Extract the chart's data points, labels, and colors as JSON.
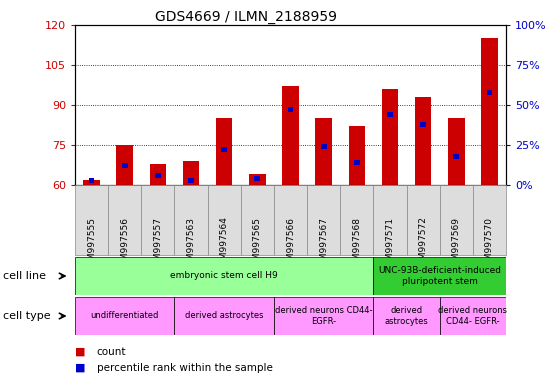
{
  "title": "GDS4669 / ILMN_2188959",
  "samples": [
    "GSM997555",
    "GSM997556",
    "GSM997557",
    "GSM997563",
    "GSM997564",
    "GSM997565",
    "GSM997566",
    "GSM997567",
    "GSM997568",
    "GSM997571",
    "GSM997572",
    "GSM997569",
    "GSM997570"
  ],
  "count_values": [
    62,
    75,
    68,
    69,
    85,
    64,
    97,
    85,
    82,
    96,
    93,
    85,
    115
  ],
  "percentile_values": [
    3,
    12,
    6,
    3,
    22,
    4,
    47,
    24,
    14,
    44,
    38,
    18,
    58
  ],
  "ylim_left": [
    60,
    120
  ],
  "ylim_right": [
    0,
    100
  ],
  "yticks_left": [
    60,
    75,
    90,
    105,
    120
  ],
  "yticks_right": [
    0,
    25,
    50,
    75,
    100
  ],
  "bar_color": "#cc0000",
  "percentile_color": "#0000cc",
  "bar_width": 0.5,
  "cell_line_groups": [
    {
      "label": "embryonic stem cell H9",
      "start": 0,
      "end": 9,
      "color": "#99ff99"
    },
    {
      "label": "UNC-93B-deficient-induced\npluripotent stem",
      "start": 9,
      "end": 13,
      "color": "#33cc33"
    }
  ],
  "cell_type_groups": [
    {
      "label": "undifferentiated",
      "start": 0,
      "end": 3,
      "color": "#ff99ff"
    },
    {
      "label": "derived astrocytes",
      "start": 3,
      "end": 6,
      "color": "#ff99ff"
    },
    {
      "label": "derived neurons CD44-\nEGFR-",
      "start": 6,
      "end": 9,
      "color": "#ff99ff"
    },
    {
      "label": "derived\nastrocytes",
      "start": 9,
      "end": 11,
      "color": "#ff99ff"
    },
    {
      "label": "derived neurons\nCD44- EGFR-",
      "start": 11,
      "end": 13,
      "color": "#ff99ff"
    }
  ],
  "bar_color_hex": "#cc0000",
  "percentile_color_hex": "#0000cc",
  "title_color": "#000000",
  "background_color": "#ffffff"
}
